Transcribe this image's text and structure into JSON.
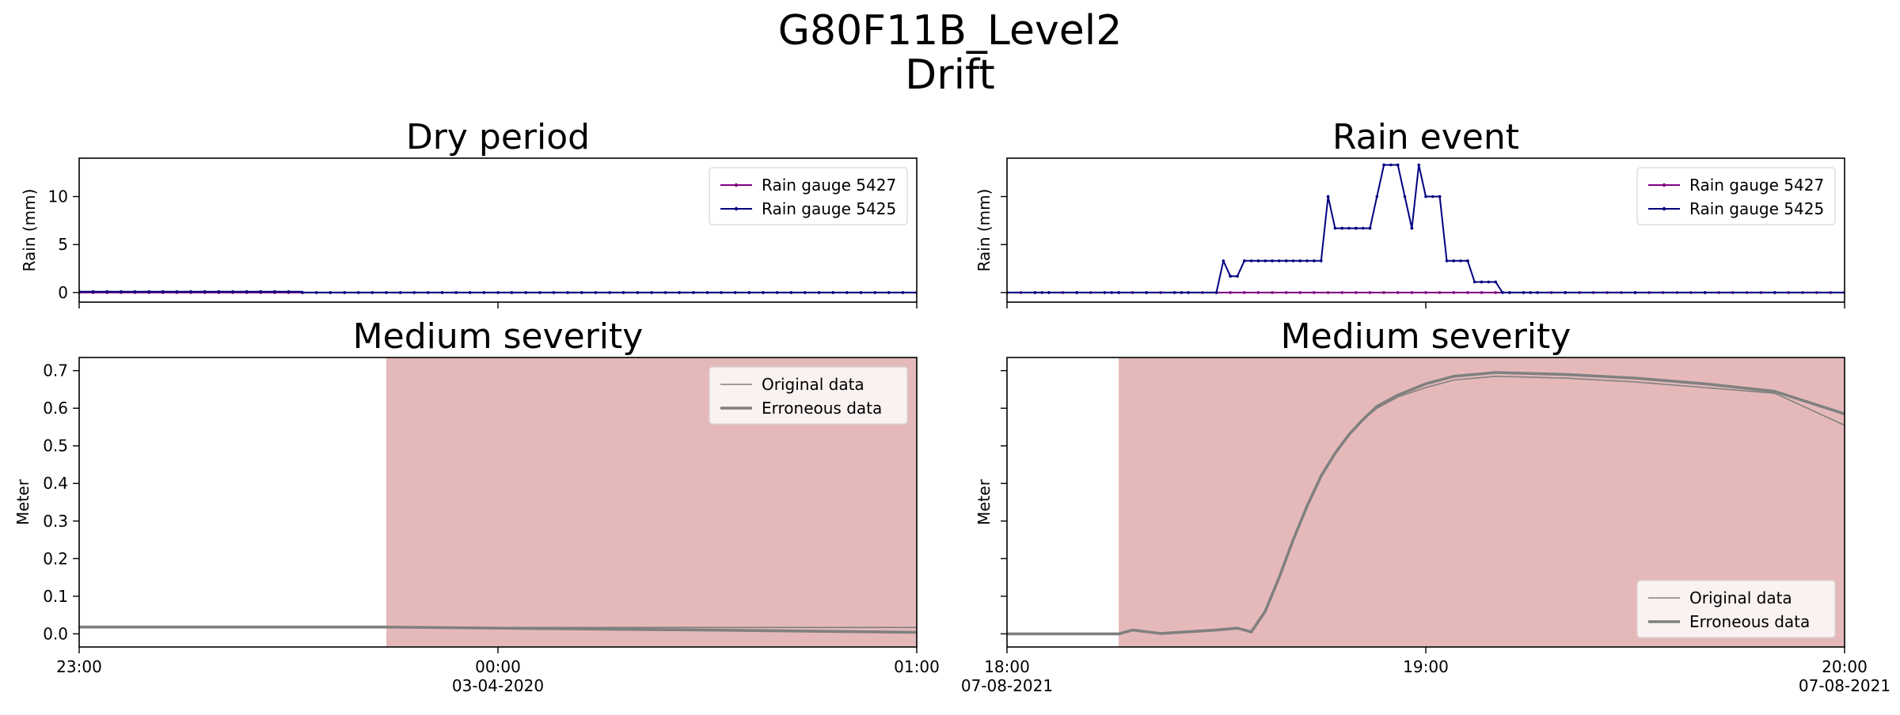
{
  "suptitle": {
    "line1": "G80F11B_Level2",
    "line2": "Drift"
  },
  "colors": {
    "gauge_5427": "#800080",
    "gauge_5425": "#000080",
    "data_line": "#808080",
    "anomaly_shade": "#e5b9ba"
  },
  "chart_data": [
    {
      "type": "line",
      "title": "Dry period",
      "ylabel": "Rain (mm)",
      "xlabel": "",
      "x_range": [
        "23:00",
        "01:00"
      ],
      "x_ticks": [
        {
          "label": "23:00",
          "sublabel": ""
        },
        {
          "label": "00:00",
          "sublabel": "03-04-2020"
        },
        {
          "label": "01:00",
          "sublabel": ""
        }
      ],
      "yticks": [
        0,
        5,
        10
      ],
      "ylim": [
        -1,
        14
      ],
      "legend": "top-right",
      "series": [
        {
          "name": "Rain gauge 5427",
          "segments": [
            {
              "from": "23:00",
              "to": "01:00",
              "value": 0
            }
          ]
        },
        {
          "name": "Rain gauge 5425",
          "segments": [
            {
              "from": "23:00",
              "to": "23:32",
              "value": 0.1
            },
            {
              "from": "23:32",
              "to": "01:00",
              "value": 0
            }
          ]
        }
      ]
    },
    {
      "type": "line",
      "title": "Rain event",
      "ylabel": "Rain (mm)",
      "xlabel": "",
      "x_range": [
        "18:00",
        "20:00"
      ],
      "x_ticks": [
        {
          "label": "18:00",
          "sublabel": "07-08-2021"
        },
        {
          "label": "19:00",
          "sublabel": ""
        },
        {
          "label": "20:00",
          "sublabel": "07-08-2021"
        }
      ],
      "yticks": [
        0,
        5,
        10
      ],
      "ylim": [
        -1,
        14
      ],
      "legend": "top-right",
      "series": [
        {
          "name": "Rain gauge 5427",
          "segments": [
            {
              "from": "18:00",
              "to": "20:00",
              "value": 0
            }
          ]
        },
        {
          "name": "Rain gauge 5425",
          "points": [
            [
              "18:00",
              0
            ],
            [
              "18:05",
              0
            ],
            [
              "18:10",
              0
            ],
            [
              "18:15",
              0
            ],
            [
              "18:20",
              0
            ],
            [
              "18:25",
              0
            ],
            [
              "18:30",
              0
            ],
            [
              "18:31",
              3.3
            ],
            [
              "18:32",
              1.7
            ],
            [
              "18:33",
              1.7
            ],
            [
              "18:34",
              3.3
            ],
            [
              "18:35",
              3.3
            ],
            [
              "18:36",
              3.3
            ],
            [
              "18:37",
              3.3
            ],
            [
              "18:38",
              3.3
            ],
            [
              "18:39",
              3.3
            ],
            [
              "18:40",
              3.3
            ],
            [
              "18:41",
              3.3
            ],
            [
              "18:42",
              3.3
            ],
            [
              "18:43",
              3.3
            ],
            [
              "18:44",
              3.3
            ],
            [
              "18:45",
              3.3
            ],
            [
              "18:46",
              10
            ],
            [
              "18:47",
              6.7
            ],
            [
              "18:48",
              6.7
            ],
            [
              "18:49",
              6.7
            ],
            [
              "18:50",
              6.7
            ],
            [
              "18:51",
              6.7
            ],
            [
              "18:52",
              6.7
            ],
            [
              "18:53",
              10
            ],
            [
              "18:54",
              13.3
            ],
            [
              "18:55",
              13.3
            ],
            [
              "18:56",
              13.3
            ],
            [
              "18:57",
              10
            ],
            [
              "18:58",
              6.7
            ],
            [
              "18:59",
              13.3
            ],
            [
              "19:00",
              10
            ],
            [
              "19:01",
              10
            ],
            [
              "19:02",
              10
            ],
            [
              "19:03",
              3.3
            ],
            [
              "19:04",
              3.3
            ],
            [
              "19:05",
              3.3
            ],
            [
              "19:06",
              3.3
            ],
            [
              "19:07",
              1.1
            ],
            [
              "19:08",
              1.1
            ],
            [
              "19:09",
              1.1
            ],
            [
              "19:10",
              1.1
            ],
            [
              "19:11",
              0
            ],
            [
              "19:15",
              0
            ],
            [
              "19:20",
              0
            ],
            [
              "19:30",
              0
            ],
            [
              "19:40",
              0
            ],
            [
              "19:50",
              0
            ],
            [
              "20:00",
              0
            ]
          ]
        }
      ]
    },
    {
      "type": "line",
      "title": "Medium severity",
      "ylabel": "Meter",
      "xlabel": "",
      "x_range": [
        "23:00",
        "01:00"
      ],
      "x_ticks": [
        {
          "label": "23:00",
          "sublabel": ""
        },
        {
          "label": "00:00",
          "sublabel": "03-04-2020"
        },
        {
          "label": "01:00",
          "sublabel": ""
        }
      ],
      "yticks": [
        0.0,
        0.1,
        0.2,
        0.3,
        0.4,
        0.5,
        0.6,
        0.7
      ],
      "ylim": [
        -0.035,
        0.735
      ],
      "legend": "top-right",
      "shaded_range": [
        "23:44",
        "01:00"
      ],
      "series": [
        {
          "name": "Original data",
          "points": [
            [
              "23:00",
              0.018
            ],
            [
              "23:44",
              0.018
            ],
            [
              "00:00",
              0.017
            ],
            [
              "00:30",
              0.017
            ],
            [
              "01:00",
              0.017
            ]
          ]
        },
        {
          "name": "Erroneous data",
          "points": [
            [
              "23:00",
              0.018
            ],
            [
              "23:44",
              0.018
            ],
            [
              "00:00",
              0.015
            ],
            [
              "00:30",
              0.01
            ],
            [
              "01:00",
              0.004
            ]
          ]
        }
      ]
    },
    {
      "type": "line",
      "title": "Medium severity",
      "ylabel": "Meter",
      "xlabel": "",
      "x_range": [
        "18:00",
        "20:00"
      ],
      "x_ticks": [
        {
          "label": "18:00",
          "sublabel": "07-08-2021"
        },
        {
          "label": "19:00",
          "sublabel": ""
        },
        {
          "label": "20:00",
          "sublabel": "07-08-2021"
        }
      ],
      "yticks": [
        0.0,
        0.1,
        0.2,
        0.3,
        0.4,
        0.5,
        0.6,
        0.7
      ],
      "ylim": [
        -0.035,
        0.735
      ],
      "legend": "bottom-right",
      "shaded_range": [
        "18:16",
        "20:00"
      ],
      "series": [
        {
          "name": "Original data",
          "points": [
            [
              "18:00",
              0.0
            ],
            [
              "18:16",
              0.0
            ],
            [
              "18:18",
              0.01
            ],
            [
              "18:22",
              0.001
            ],
            [
              "18:30",
              0.01
            ],
            [
              "18:33",
              0.015
            ],
            [
              "18:35",
              0.005
            ],
            [
              "18:37",
              0.06
            ],
            [
              "18:39",
              0.15
            ],
            [
              "18:41",
              0.25
            ],
            [
              "18:43",
              0.34
            ],
            [
              "18:45",
              0.42
            ],
            [
              "18:47",
              0.48
            ],
            [
              "18:49",
              0.53
            ],
            [
              "18:51",
              0.57
            ],
            [
              "18:53",
              0.6
            ],
            [
              "18:56",
              0.63
            ],
            [
              "19:00",
              0.655
            ],
            [
              "19:04",
              0.675
            ],
            [
              "19:10",
              0.685
            ],
            [
              "19:20",
              0.68
            ],
            [
              "19:30",
              0.67
            ],
            [
              "19:40",
              0.655
            ],
            [
              "19:50",
              0.64
            ],
            [
              "20:00",
              0.555
            ]
          ]
        },
        {
          "name": "Erroneous data",
          "points": [
            [
              "18:00",
              0.0
            ],
            [
              "18:16",
              0.0
            ],
            [
              "18:18",
              0.01
            ],
            [
              "18:22",
              0.001
            ],
            [
              "18:30",
              0.01
            ],
            [
              "18:33",
              0.015
            ],
            [
              "18:35",
              0.005
            ],
            [
              "18:37",
              0.06
            ],
            [
              "18:39",
              0.15
            ],
            [
              "18:41",
              0.25
            ],
            [
              "18:43",
              0.34
            ],
            [
              "18:45",
              0.42
            ],
            [
              "18:47",
              0.48
            ],
            [
              "18:49",
              0.53
            ],
            [
              "18:51",
              0.57
            ],
            [
              "18:53",
              0.605
            ],
            [
              "18:56",
              0.635
            ],
            [
              "19:00",
              0.665
            ],
            [
              "19:04",
              0.685
            ],
            [
              "19:10",
              0.695
            ],
            [
              "19:20",
              0.69
            ],
            [
              "19:30",
              0.68
            ],
            [
              "19:40",
              0.665
            ],
            [
              "19:50",
              0.645
            ],
            [
              "20:00",
              0.585
            ]
          ]
        }
      ]
    }
  ]
}
